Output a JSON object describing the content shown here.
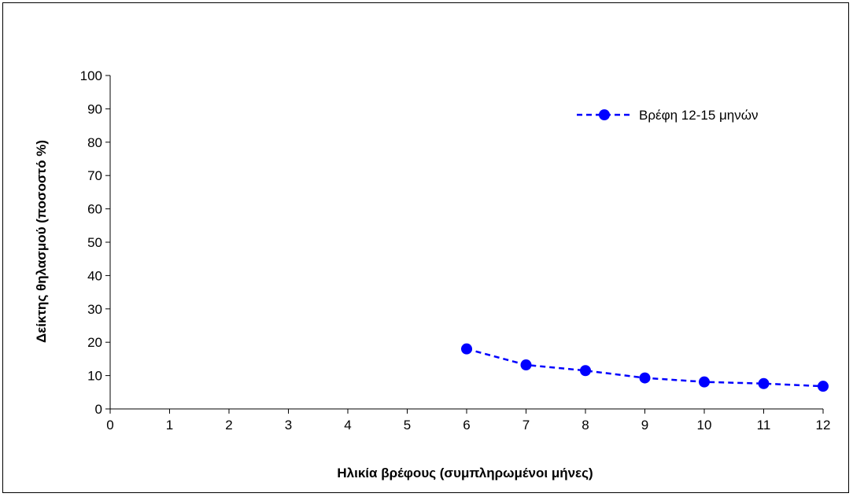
{
  "chart_data": {
    "type": "line",
    "title": "",
    "xlabel": "Ηλικία βρέφους (συμπληρωμένοι μήνες)",
    "ylabel": "Δείκτης θηλασμού (ποσοστό %)",
    "xlim": [
      0,
      12
    ],
    "ylim": [
      0,
      100
    ],
    "x_ticks": [
      "0",
      "1",
      "2",
      "3",
      "4",
      "5",
      "6",
      "7",
      "8",
      "9",
      "10",
      "11",
      "12"
    ],
    "y_ticks": [
      "0",
      "10",
      "20",
      "30",
      "40",
      "50",
      "60",
      "70",
      "80",
      "90",
      "100"
    ],
    "grid": false,
    "legend_position": "top-right",
    "series": [
      {
        "name": "Βρέφη 12-15 μηνών",
        "color": "#0000ff",
        "line_style": "dashed",
        "marker": "circle",
        "x": [
          6,
          7,
          8,
          9,
          10,
          11,
          12
        ],
        "y": [
          18,
          13.2,
          11.5,
          9.3,
          8.1,
          7.6,
          6.8
        ]
      }
    ]
  }
}
